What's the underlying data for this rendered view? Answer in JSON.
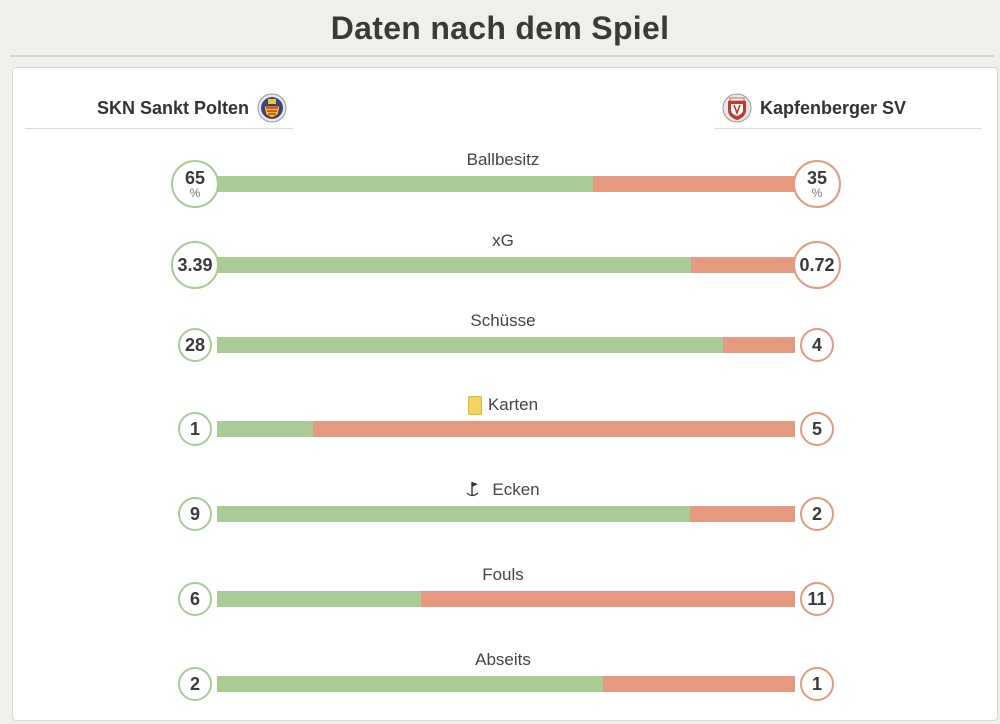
{
  "page": {
    "title": "Daten nach dem Spiel"
  },
  "teams": {
    "home": {
      "name": "SKN Sankt Polten",
      "crest": "skn-crest-icon",
      "color": "#a9cb95"
    },
    "away": {
      "name": "Kapfenberger SV",
      "crest": "ksv-crest-icon",
      "color": "#e59a80"
    }
  },
  "stats": [
    {
      "label": "Ballbesitz",
      "home": "65",
      "away": "35",
      "unit": "%",
      "home_share": 0.65
    },
    {
      "label": "xG",
      "home": "3.39",
      "away": "0.72",
      "home_share": 0.82
    },
    {
      "label": "Schüsse",
      "home": "28",
      "away": "4",
      "home_share": 0.875
    },
    {
      "label": "Karten",
      "icon": "yellow-card-icon",
      "home": "1",
      "away": "5",
      "home_share": 0.1667
    },
    {
      "label": "Ecken",
      "icon": "corner-flag-icon",
      "home": "9",
      "away": "2",
      "home_share": 0.818
    },
    {
      "label": "Fouls",
      "home": "6",
      "away": "11",
      "home_share": 0.353
    },
    {
      "label": "Abseits",
      "home": "2",
      "away": "1",
      "home_share": 0.667
    }
  ]
}
